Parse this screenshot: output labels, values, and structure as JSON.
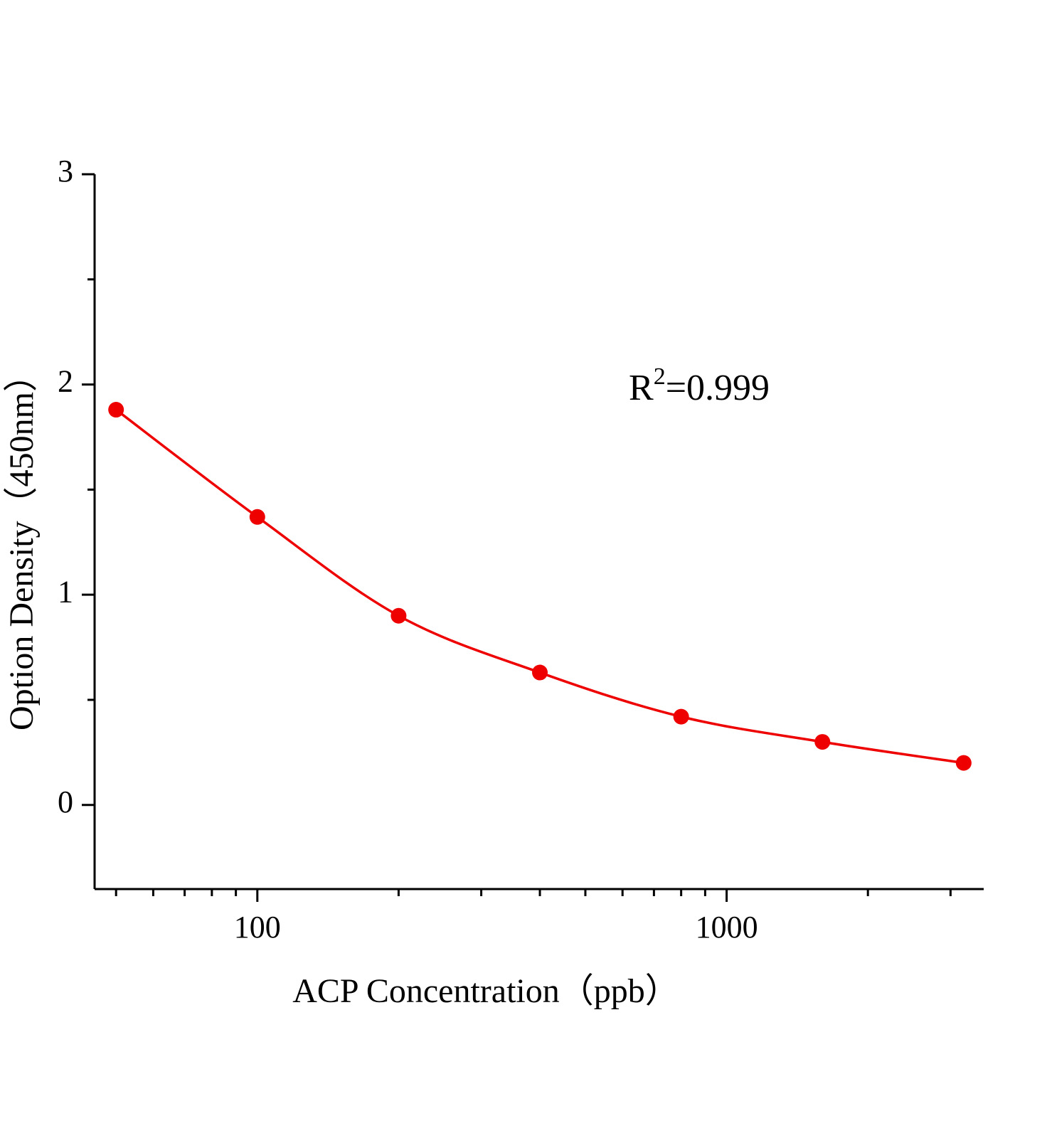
{
  "chart_data": {
    "type": "scatter",
    "x_label": "ACP Concentration（ppb）",
    "y_label": "Option Density（450nm）",
    "annotation": [
      "R",
      "2",
      "=0.999"
    ],
    "series": [
      {
        "color": "#ee0000",
        "x": [
          50,
          100,
          200,
          400,
          800,
          1600,
          3200
        ],
        "values": [
          1.88,
          1.37,
          0.9,
          0.63,
          0.42,
          0.3,
          0.2
        ]
      }
    ],
    "xscale": "log",
    "xlim": [
      45,
      3530
    ],
    "xticks": [
      100,
      1000
    ],
    "xminor": [
      50,
      60,
      70,
      80,
      90,
      200,
      300,
      400,
      500,
      600,
      700,
      800,
      900,
      2000,
      3000
    ],
    "ylim": [
      -0.4,
      3
    ],
    "yticks": [
      0,
      1,
      2,
      3
    ],
    "yminor": [
      0.5,
      1.5,
      2.5
    ],
    "fit_line": true
  }
}
